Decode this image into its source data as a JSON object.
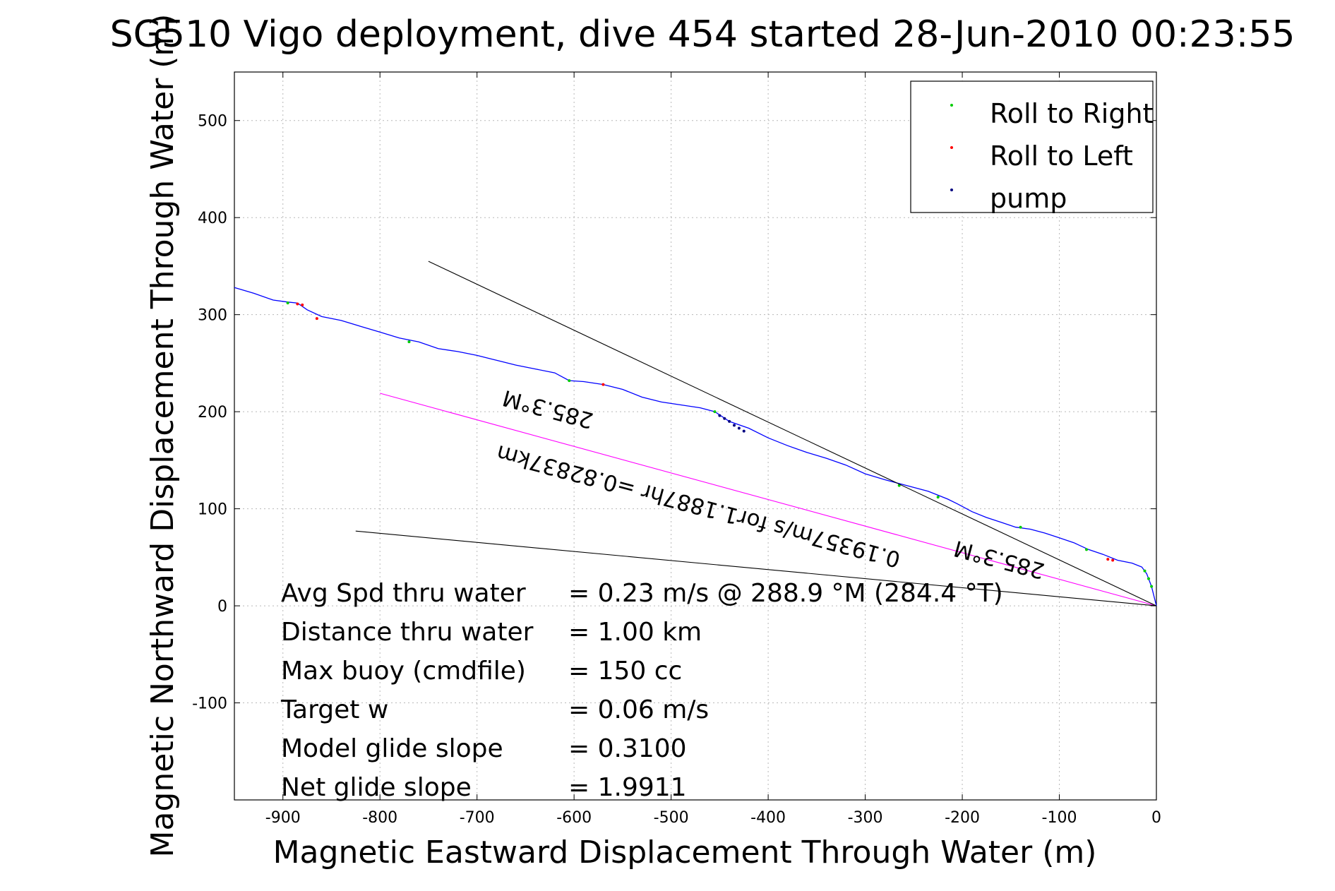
{
  "chart_data": {
    "type": "line",
    "title": "SG510 Vigo deployment, dive 454 started 28-Jun-2010 00:23:55",
    "xlabel": "Magnetic Eastward Displacement Through Water (m)",
    "ylabel": "Magnetic Northward Displacement Through Water (m)",
    "xlim": [
      -950,
      0
    ],
    "ylim": [
      -200,
      550
    ],
    "xticks": [
      "-900",
      "-800",
      "-700",
      "-600",
      "-500",
      "-400",
      "-300",
      "-200",
      "-100",
      "0"
    ],
    "yticks": [
      "-100",
      "0",
      "100",
      "200",
      "300",
      "400",
      "500"
    ],
    "grid": true,
    "legend_position": "top-right",
    "legend": [
      {
        "label": "Roll to Right",
        "color": "#00cc00"
      },
      {
        "label": "Roll to Left",
        "color": "#ff0000"
      },
      {
        "label": "pump",
        "color": "#000080"
      }
    ],
    "colors": {
      "track": "#0000ff",
      "net_vector": "#ff00ff",
      "reference_lines": "#000000"
    },
    "series": [
      {
        "kind": "track",
        "x": [
          0,
          -5,
          -10,
          -15,
          -25,
          -40,
          -55,
          -70,
          -85,
          -100,
          -115,
          -130,
          -145,
          -160,
          -175,
          -190,
          -205,
          -215,
          -225,
          -235,
          -250,
          -265,
          -280,
          -300,
          -320,
          -340,
          -360,
          -380,
          -400,
          -420,
          -440,
          -455,
          -470,
          -490,
          -510,
          -530,
          -550,
          -570,
          -590,
          -605,
          -620,
          -640,
          -660,
          -680,
          -700,
          -720,
          -740,
          -760,
          -780,
          -800,
          -820,
          -840,
          -860,
          -875,
          -885,
          -895,
          -910,
          -930,
          -950
        ],
        "y": [
          0,
          20,
          33,
          40,
          44,
          47,
          53,
          58,
          65,
          70,
          75,
          79,
          81,
          86,
          91,
          97,
          105,
          110,
          114,
          118,
          122,
          126,
          130,
          136,
          145,
          152,
          158,
          165,
          173,
          183,
          190,
          200,
          204,
          207,
          210,
          215,
          223,
          228,
          231,
          232,
          240,
          244,
          248,
          253,
          258,
          262,
          265,
          272,
          276,
          282,
          288,
          294,
          298,
          305,
          312,
          313,
          315,
          322,
          328
        ]
      },
      {
        "kind": "roll_to_right",
        "x": [
          -5,
          -8,
          -12,
          -72,
          -140,
          -225,
          -265,
          -455,
          -605,
          -770,
          -895
        ],
        "y": [
          20,
          28,
          36,
          58,
          81,
          112,
          124,
          200,
          232,
          272,
          312
        ]
      },
      {
        "kind": "roll_to_left",
        "x": [
          -45,
          -50,
          -570,
          -865,
          -880,
          -885
        ],
        "y": [
          47,
          48,
          228,
          296,
          310,
          311
        ]
      },
      {
        "kind": "pump",
        "x": [
          -440,
          -445,
          -450,
          -435,
          -430,
          -425
        ],
        "y": [
          190,
          193,
          196,
          186,
          183,
          180
        ]
      },
      {
        "kind": "net_vector",
        "x": [
          -800,
          0
        ],
        "y": [
          219,
          0
        ]
      },
      {
        "kind": "reference_line",
        "x": [
          -750,
          0
        ],
        "y": [
          355,
          0
        ]
      },
      {
        "kind": "reference_line",
        "x": [
          -825,
          0
        ],
        "y": [
          77,
          0
        ]
      }
    ],
    "annotations": [
      {
        "text": "285.3°M",
        "x": -625,
        "y": 210,
        "rotation_deg": 195
      },
      {
        "text": "0.19357m/s for1.1887hr =0.82837km",
        "x": -470,
        "y": 110,
        "rotation_deg": 195
      },
      {
        "text": "285.3°M",
        "x": -160,
        "y": 55,
        "rotation_deg": 195
      }
    ]
  },
  "stats": [
    {
      "label": "Avg Spd thru water",
      "value": "=  0.23 m/s @ 288.9 °M (284.4 °T)"
    },
    {
      "label": "Distance thru water",
      "value": "=  1.00 km"
    },
    {
      "label": "Max buoy (cmdfile)",
      "value": "= 150 cc"
    },
    {
      "label": "Target w",
      "value": "= 0.06 m/s"
    },
    {
      "label": "Model glide slope",
      "value": "= 0.3100"
    },
    {
      "label": "Net glide slope",
      "value": "= 1.9911"
    }
  ]
}
